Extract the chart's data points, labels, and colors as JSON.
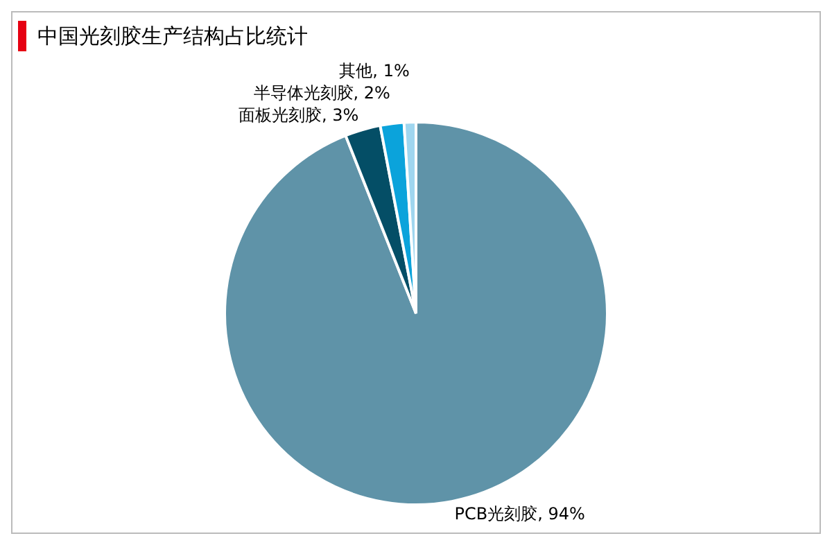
{
  "chart_data": {
    "type": "pie",
    "title": "中国光刻胶生产结构占比统计",
    "categories": [
      "PCB光刻胶",
      "面板光刻胶",
      "半导体光刻胶",
      "其他"
    ],
    "values": [
      94,
      3,
      2,
      1
    ],
    "colors": [
      "#5f93a8",
      "#044e66",
      "#0ba3db",
      "#9fd6ef"
    ],
    "value_labels": [
      ", 94%",
      ", 3%",
      ", 2%",
      ", 1%"
    ]
  }
}
